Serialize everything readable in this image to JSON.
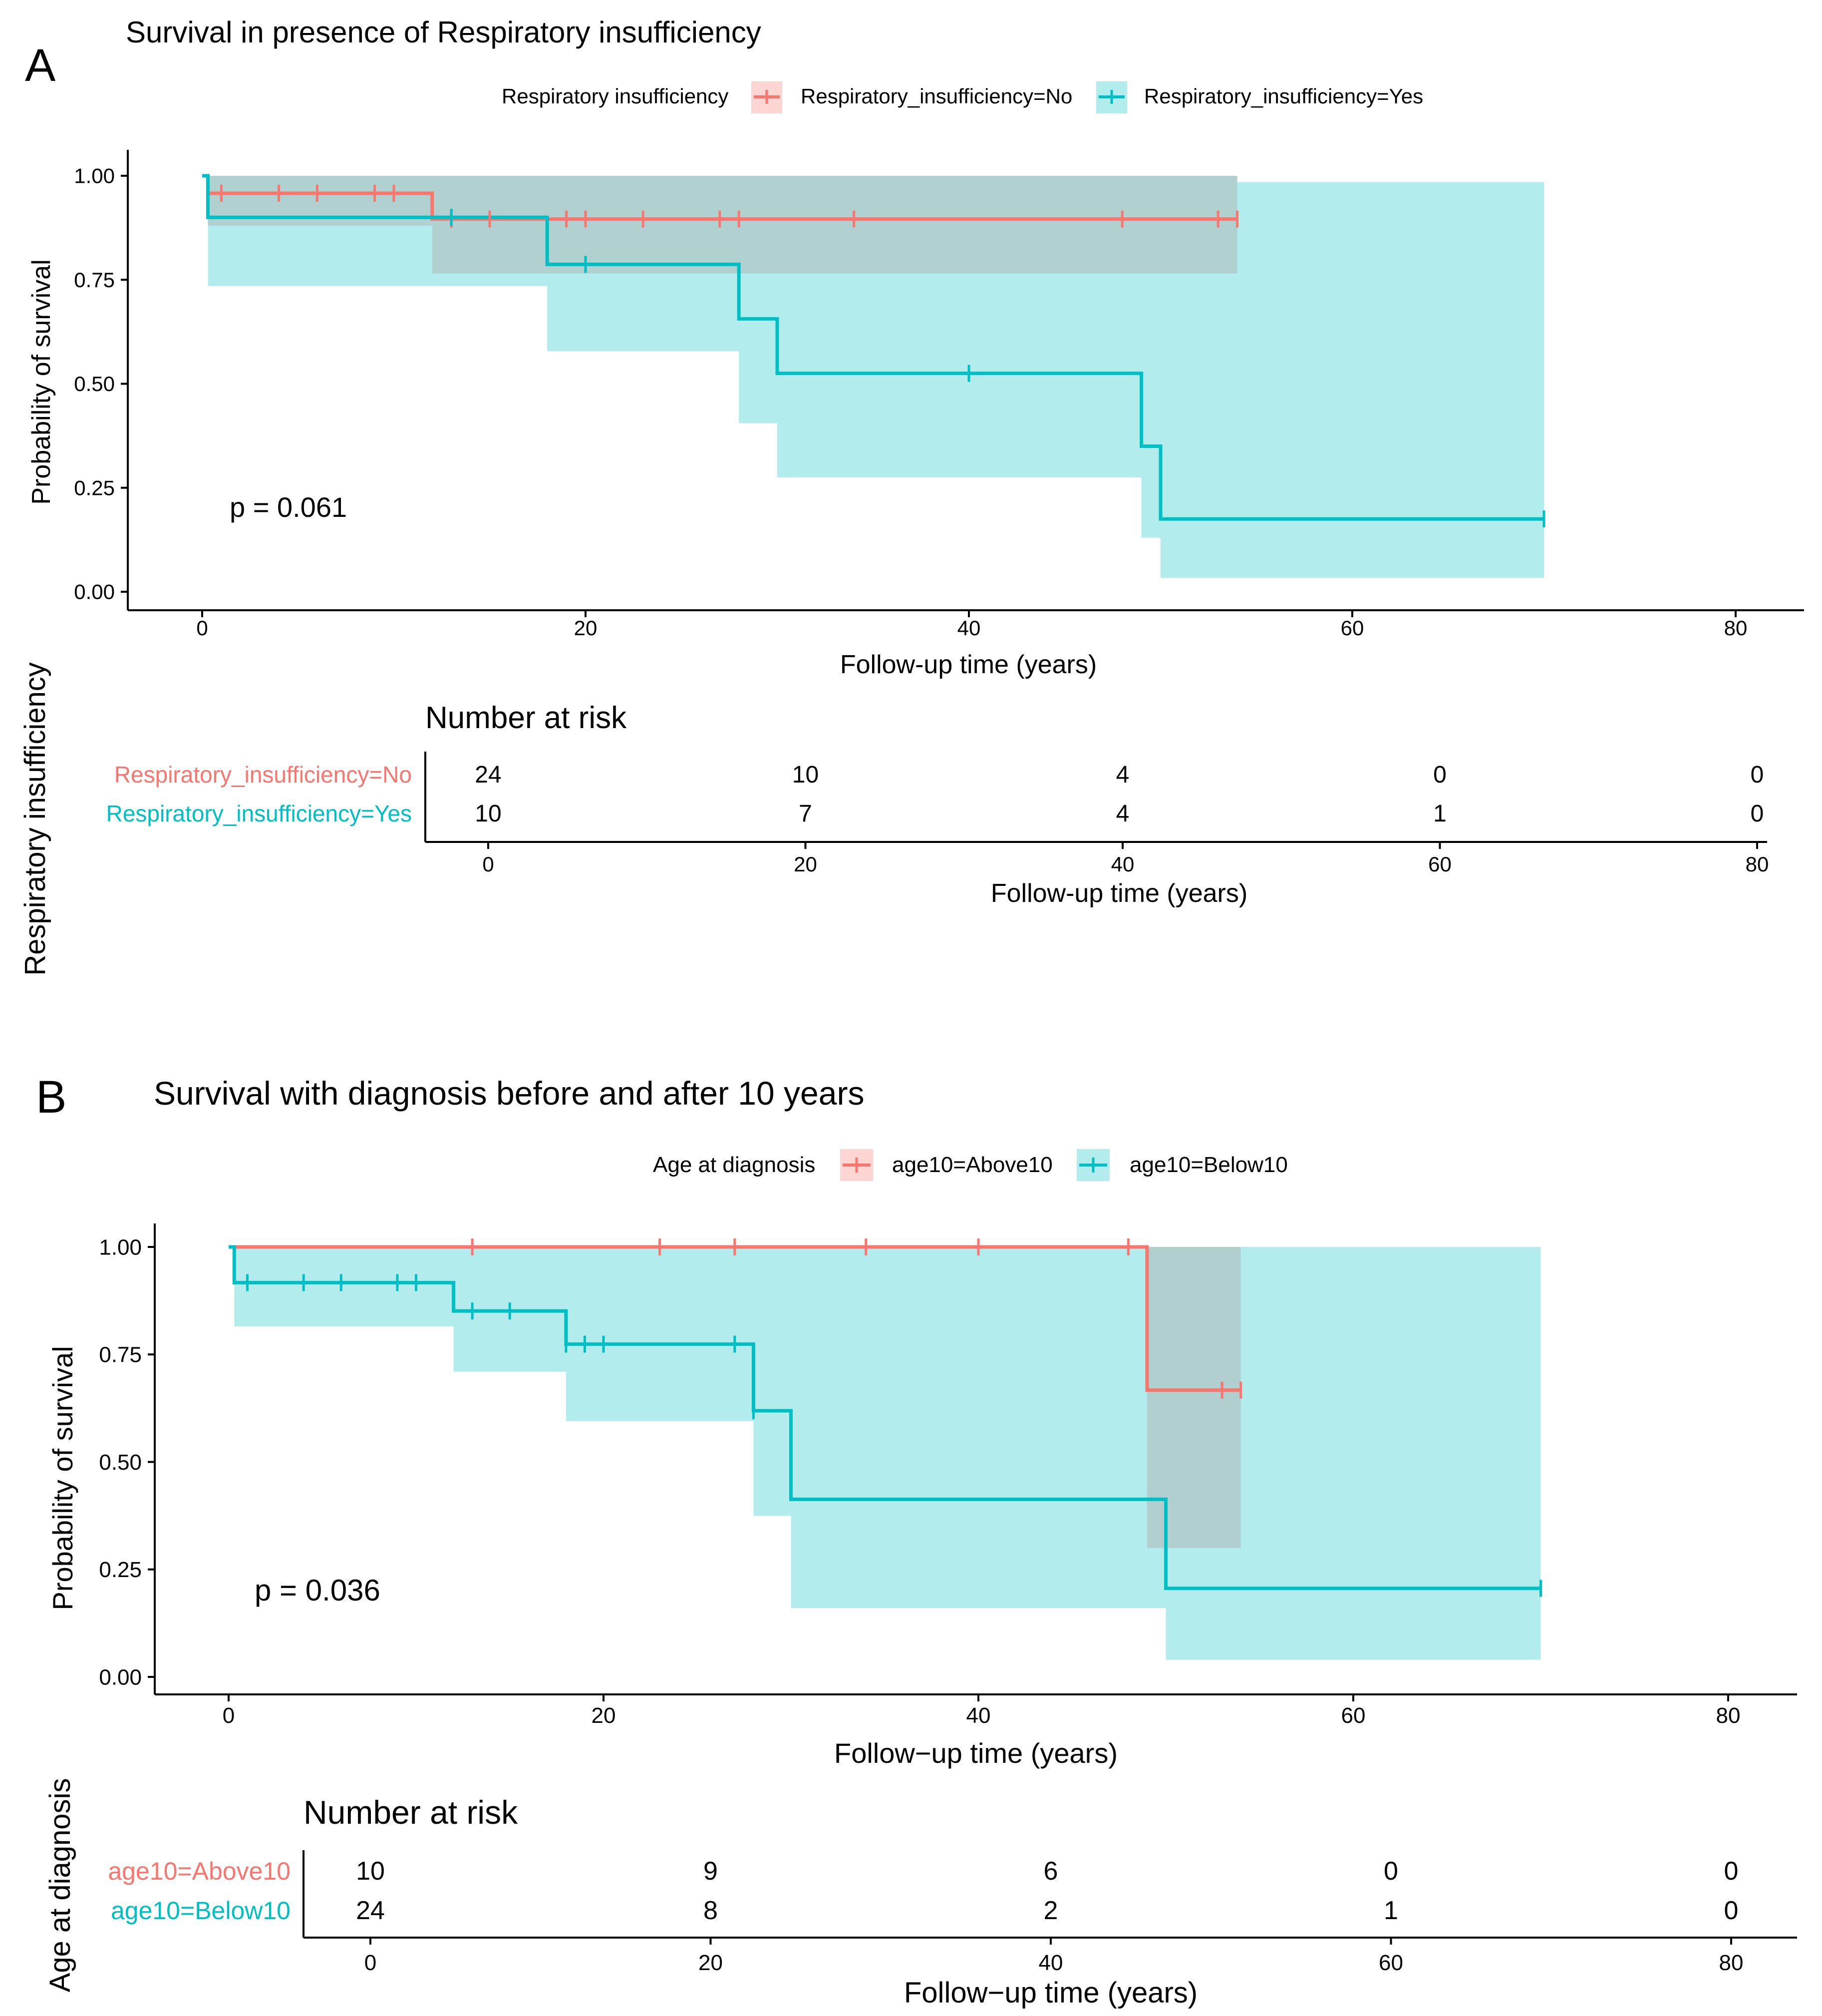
{
  "colors": {
    "no": "#F8766D",
    "yes": "#00BFC4",
    "axis": "#000000",
    "text": "#000000"
  },
  "panels": {
    "A": {
      "letter": "A",
      "title": "Survival in presence of Respiratory insufficiency",
      "legend": {
        "title": "Respiratory insufficiency",
        "items": [
          "Respiratory_insufficiency=No",
          "Respiratory_insufficiency=Yes"
        ]
      },
      "pvalue": "p = 0.061",
      "ylabel": "Probability of survival",
      "xlabel": "Follow-up time (years)",
      "yticks": [
        "0.00",
        "0.25",
        "0.50",
        "0.75",
        "1.00"
      ],
      "xticks": [
        "0",
        "20",
        "40",
        "60",
        "80"
      ],
      "risk": {
        "title": "Number at risk",
        "ylabel": "Respiratory insufficiency",
        "xlabel": "Follow-up time (years)",
        "xticks": [
          "0",
          "20",
          "40",
          "60",
          "80"
        ],
        "rows": [
          {
            "label": "Respiratory_insufficiency=No",
            "values": [
              "24",
              "10",
              "4",
              "0",
              "0"
            ]
          },
          {
            "label": "Respiratory_insufficiency=Yes",
            "values": [
              "10",
              "7",
              "4",
              "1",
              "0"
            ]
          }
        ]
      }
    },
    "B": {
      "letter": "B",
      "title": "Survival with diagnosis before and after 10 years",
      "legend": {
        "title": "Age at diagnosis",
        "items": [
          "age10=Above10",
          "age10=Below10"
        ]
      },
      "pvalue": "p = 0.036",
      "ylabel": "Probability of survival",
      "xlabel": "Follow−up time (years)",
      "yticks": [
        "0.00",
        "0.25",
        "0.50",
        "0.75",
        "1.00"
      ],
      "xticks": [
        "0",
        "20",
        "40",
        "60",
        "80"
      ],
      "risk": {
        "title": "Number at risk",
        "ylabel": "Age at diagnosis",
        "xlabel": "Follow−up time (years)",
        "xticks": [
          "0",
          "20",
          "40",
          "60",
          "80"
        ],
        "rows": [
          {
            "label": "age10=Above10",
            "values": [
              "10",
              "9",
              "6",
              "0",
              "0"
            ]
          },
          {
            "label": "age10=Below10",
            "values": [
              "24",
              "8",
              "2",
              "1",
              "0"
            ]
          }
        ]
      }
    }
  },
  "chart_data": [
    {
      "type": "line",
      "subtype": "kaplan-meier",
      "title": "Survival in presence of Respiratory insufficiency",
      "xlabel": "Follow-up time (years)",
      "ylabel": "Probability of survival",
      "xlim": [
        0,
        80
      ],
      "ylim": [
        0,
        1
      ],
      "series": [
        {
          "name": "Respiratory_insufficiency=No",
          "color": "#F8766D",
          "steps": [
            [
              0,
              1.0
            ],
            [
              0.3,
              0.958
            ],
            [
              12,
              0.896
            ],
            [
              54,
              0.896
            ]
          ],
          "ci_lower": [
            [
              0.3,
              0.88
            ],
            [
              12,
              0.765
            ],
            [
              54,
              0.765
            ]
          ],
          "ci_upper": [
            [
              0.3,
              1.0
            ],
            [
              54,
              1.0
            ]
          ],
          "censor_times": [
            1,
            4,
            6,
            9,
            10,
            13,
            15,
            19,
            20,
            23,
            27,
            28,
            34,
            48,
            53,
            54
          ]
        },
        {
          "name": "Respiratory_insufficiency=Yes",
          "color": "#00BFC4",
          "steps": [
            [
              0,
              1.0
            ],
            [
              0.3,
              0.9
            ],
            [
              18,
              0.787
            ],
            [
              28,
              0.656
            ],
            [
              30,
              0.525
            ],
            [
              49,
              0.35
            ],
            [
              50,
              0.175
            ],
            [
              70,
              0.175
            ]
          ],
          "ci_lower": [
            [
              0.3,
              0.735
            ],
            [
              18,
              0.578
            ],
            [
              28,
              0.405
            ],
            [
              30,
              0.275
            ],
            [
              49,
              0.13
            ],
            [
              50,
              0.033
            ],
            [
              70,
              0.033
            ]
          ],
          "ci_upper": [
            [
              0.3,
              1.0
            ],
            [
              54,
              0.985
            ],
            [
              70,
              0.985
            ]
          ],
          "censor_times": [
            13,
            20,
            40,
            70
          ]
        }
      ]
    },
    {
      "type": "line",
      "subtype": "kaplan-meier",
      "title": "Survival with diagnosis before and after 10 years",
      "xlabel": "Follow−up time (years)",
      "ylabel": "Probability of survival",
      "xlim": [
        0,
        80
      ],
      "ylim": [
        0,
        1
      ],
      "series": [
        {
          "name": "age10=Above10",
          "color": "#F8766D",
          "steps": [
            [
              0,
              1.0
            ],
            [
              49,
              0.667
            ],
            [
              54,
              0.667
            ]
          ],
          "ci_lower": [
            [
              49,
              0.3
            ],
            [
              54,
              0.3
            ]
          ],
          "ci_upper": [
            [
              49,
              1.0
            ],
            [
              54,
              1.0
            ]
          ],
          "censor_times": [
            13,
            23,
            27,
            34,
            40,
            48,
            53,
            54
          ]
        },
        {
          "name": "age10=Below10",
          "color": "#00BFC4",
          "steps": [
            [
              0,
              1.0
            ],
            [
              0.3,
              0.917
            ],
            [
              12,
              0.851
            ],
            [
              18,
              0.774
            ],
            [
              28,
              0.619
            ],
            [
              30,
              0.413
            ],
            [
              50,
              0.206
            ],
            [
              70,
              0.206
            ]
          ],
          "ci_lower": [
            [
              0.3,
              0.815
            ],
            [
              12,
              0.71
            ],
            [
              18,
              0.595
            ],
            [
              28,
              0.375
            ],
            [
              30,
              0.16
            ],
            [
              50,
              0.04
            ],
            [
              70,
              0.04
            ]
          ],
          "ci_upper": [
            [
              0.3,
              1.0
            ],
            [
              70,
              1.0
            ]
          ],
          "censor_times": [
            1,
            4,
            6,
            9,
            10,
            13,
            15,
            18,
            19,
            20,
            27,
            28,
            70
          ]
        }
      ]
    }
  ]
}
